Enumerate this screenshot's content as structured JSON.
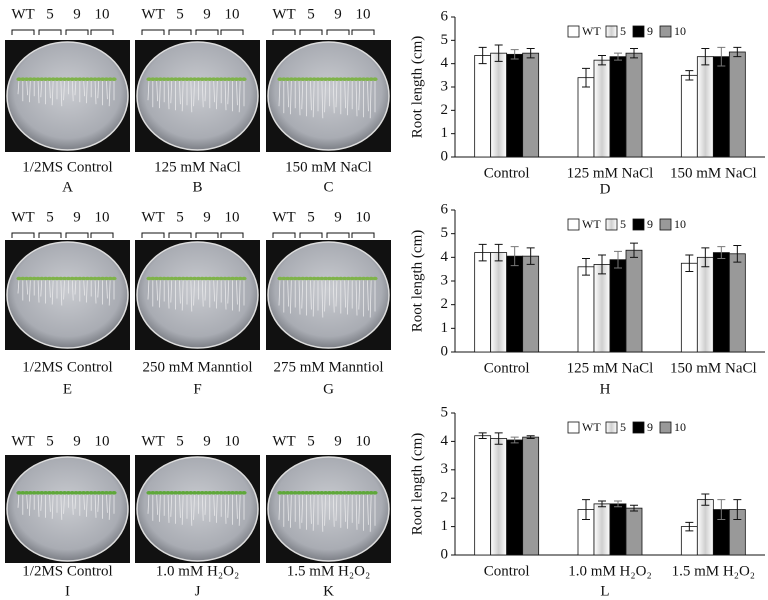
{
  "panels": [
    {
      "labels": [
        "WT",
        "5",
        "9",
        "10"
      ],
      "caption": "1/2MS Control",
      "letter": "A"
    },
    {
      "labels": [
        "WT",
        "5",
        "9",
        "10"
      ],
      "caption": "125 mM NaCl",
      "letter": "B"
    },
    {
      "labels": [
        "WT",
        "5",
        "9",
        "10"
      ],
      "caption": "150 mM NaCl",
      "letter": "C"
    },
    {
      "labels": [
        "WT",
        "5",
        "9",
        "10"
      ],
      "caption": "1/2MS Control",
      "letter": "E"
    },
    {
      "labels": [
        "WT",
        "5",
        "9",
        "10"
      ],
      "caption": "250 mM Manntiol",
      "letter": "F"
    },
    {
      "labels": [
        "WT",
        "5",
        "9",
        "10"
      ],
      "caption": "275 mM Manntiol",
      "letter": "G"
    },
    {
      "labels": [
        "WT",
        "5",
        "9",
        "10"
      ],
      "caption": "1/2MS Control",
      "letter": "I"
    },
    {
      "labels": [
        "WT",
        "5",
        "9",
        "10"
      ],
      "caption": "1.0 mM H₂O₂",
      "letter": "J"
    },
    {
      "labels": [
        "WT",
        "5",
        "9",
        "10"
      ],
      "caption": "1.5 mM H₂O₂",
      "letter": "K"
    }
  ],
  "chart_data": [
    {
      "type": "bar",
      "letter": "D",
      "y_label": "Root length (cm)",
      "legend": "top",
      "categories": [
        "Control",
        "125 mM NaCl",
        "150 mM NaCl"
      ],
      "ylim": [
        0,
        6
      ],
      "yticks": [
        0,
        1,
        2,
        3,
        4,
        5,
        6
      ],
      "series": [
        {
          "name": "WT",
          "color": "#ffffff",
          "values": [
            4.35,
            3.4,
            3.5
          ],
          "errors": [
            0.35,
            0.4,
            0.2
          ]
        },
        {
          "name": "5",
          "color": "#d9d9d9",
          "values": [
            4.45,
            4.15,
            4.3
          ],
          "errors": [
            0.35,
            0.2,
            0.35
          ]
        },
        {
          "name": "9",
          "color": "#000000",
          "values": [
            4.4,
            4.3,
            4.3
          ],
          "errors": [
            0.2,
            0.15,
            0.4
          ]
        },
        {
          "name": "10",
          "color": "#999999",
          "values": [
            4.45,
            4.45,
            4.5
          ],
          "errors": [
            0.2,
            0.2,
            0.2
          ]
        }
      ]
    },
    {
      "type": "bar",
      "letter": "H",
      "y_label": "Root length (cm)",
      "legend": "top",
      "categories": [
        "Control",
        "125 mM NaCl",
        "150 mM NaCl"
      ],
      "ylim": [
        0,
        6
      ],
      "yticks": [
        0,
        1,
        2,
        3,
        4,
        5,
        6
      ],
      "series": [
        {
          "name": "WT",
          "color": "#ffffff",
          "values": [
            4.2,
            3.6,
            3.75
          ],
          "errors": [
            0.35,
            0.35,
            0.35
          ]
        },
        {
          "name": "5",
          "color": "#d9d9d9",
          "values": [
            4.2,
            3.7,
            4.0
          ],
          "errors": [
            0.35,
            0.4,
            0.4
          ]
        },
        {
          "name": "9",
          "color": "#000000",
          "values": [
            4.05,
            3.9,
            4.2
          ],
          "errors": [
            0.4,
            0.35,
            0.25
          ]
        },
        {
          "name": "10",
          "color": "#999999",
          "values": [
            4.05,
            4.3,
            4.15
          ],
          "errors": [
            0.35,
            0.3,
            0.35
          ]
        }
      ]
    },
    {
      "type": "bar",
      "letter": "L",
      "y_label": "Root length (cm)",
      "legend": "top",
      "categories": [
        "Control",
        "1.0 mM H₂O₂",
        "1.5 mM H₂O₂"
      ],
      "ylim": [
        0,
        5
      ],
      "yticks": [
        0,
        1,
        2,
        3,
        4,
        5
      ],
      "series": [
        {
          "name": "WT",
          "color": "#ffffff",
          "values": [
            4.2,
            1.6,
            1.0
          ],
          "errors": [
            0.1,
            0.35,
            0.15
          ]
        },
        {
          "name": "5",
          "color": "#d9d9d9",
          "values": [
            4.1,
            1.8,
            1.95
          ],
          "errors": [
            0.2,
            0.1,
            0.2
          ]
        },
        {
          "name": "9",
          "color": "#000000",
          "values": [
            4.05,
            1.8,
            1.6
          ],
          "errors": [
            0.1,
            0.1,
            0.35
          ]
        },
        {
          "name": "10",
          "color": "#999999",
          "values": [
            4.15,
            1.65,
            1.6
          ],
          "errors": [
            0.05,
            0.1,
            0.35
          ]
        }
      ]
    }
  ]
}
